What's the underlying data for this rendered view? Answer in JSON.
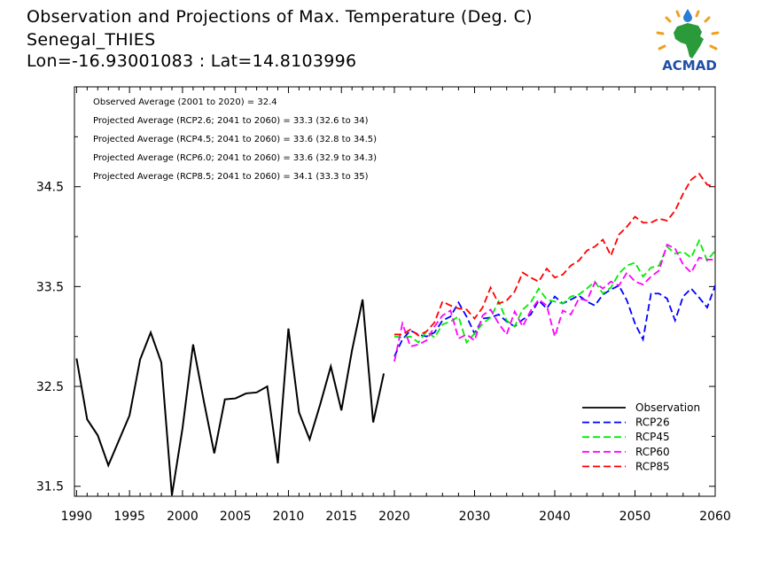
{
  "header": {
    "title": "Observation and Projections of Max. Temperature (Deg. C)",
    "station": "Senegal_THIES",
    "coords": "Lon=-16.93001083 : Lat=14.8103996"
  },
  "logo": {
    "text": "ACMAD"
  },
  "chart_data": {
    "type": "line",
    "title": "Observation and Projections of Max. Temperature (Deg. C)",
    "xlabel": "",
    "ylabel": "",
    "xlim": [
      1989.8,
      2060
    ],
    "ylim": [
      31.4,
      35.5
    ],
    "grid": false,
    "legend_position": "bottom-right",
    "yticks": [
      31.5,
      32.5,
      33.5,
      34.5
    ],
    "ytick_labels": [
      "31.5",
      "32.5",
      "33.5",
      "34.5"
    ],
    "xticks_left": [
      1990,
      1995,
      2000,
      2005,
      2010,
      2015,
      2020
    ],
    "xticks_right": [
      2020,
      2030,
      2040,
      2050,
      2060
    ],
    "xtick_labels": [
      "1990",
      "1995",
      "2000",
      "2005",
      "2010",
      "2015",
      "2020",
      "2030",
      "2040",
      "2050",
      "2060"
    ],
    "annotations": [
      "Observed Average (2001 to 2020) = 32.4",
      "Projected Average (RCP2.6; 2041 to 2060) = 33.3 (32.6 to 34)",
      "Projected Average (RCP4.5; 2041 to 2060) = 33.6 (32.8 to 34.5)",
      "Projected Average (RCP6.0; 2041 to 2060) = 33.6 (32.9 to 34.3)",
      "Projected Average (RCP8.5; 2041 to 2060) = 34.1 (33.3 to 35)"
    ],
    "observation": {
      "name": "Observation",
      "color": "#000000",
      "x": [
        1990,
        1991,
        1992,
        1993,
        1994,
        1995,
        1996,
        1997,
        1998,
        1999,
        2000,
        2001,
        2002,
        2003,
        2004,
        2005,
        2006,
        2007,
        2008,
        2009,
        2010,
        2011,
        2012,
        2013,
        2014,
        2015,
        2016,
        2017,
        2018,
        2019,
        2020
      ],
      "values": [
        32.78,
        32.17,
        32.01,
        31.71,
        31.96,
        32.21,
        32.77,
        33.04,
        32.74,
        31.41,
        32.08,
        32.92,
        32.36,
        31.83,
        32.37,
        32.38,
        32.43,
        32.44,
        32.5,
        31.73,
        33.08,
        32.24,
        31.97,
        32.32,
        32.7,
        32.26,
        32.86,
        33.37,
        32.14,
        32.63,
        null
      ]
    },
    "series": [
      {
        "name": "RCP26",
        "color": "#0000ff",
        "x": [
          2020,
          2021,
          2022,
          2023,
          2024,
          2025,
          2026,
          2027,
          2028,
          2029,
          2030,
          2031,
          2032,
          2033,
          2034,
          2035,
          2036,
          2037,
          2038,
          2039,
          2040,
          2041,
          2042,
          2043,
          2044,
          2045,
          2046,
          2047,
          2048,
          2049,
          2050,
          2051,
          2052,
          2053,
          2054,
          2055,
          2056,
          2057,
          2058,
          2059,
          2060
        ],
        "values": [
          32.8,
          32.97,
          33.06,
          33.02,
          33.0,
          33.04,
          33.16,
          33.2,
          33.34,
          33.2,
          33.03,
          33.18,
          33.19,
          33.22,
          33.15,
          33.1,
          33.17,
          33.22,
          33.36,
          33.28,
          33.4,
          33.33,
          33.37,
          33.41,
          33.35,
          33.31,
          33.42,
          33.47,
          33.51,
          33.36,
          33.13,
          32.97,
          33.43,
          33.43,
          33.38,
          33.16,
          33.4,
          33.48,
          33.39,
          33.29,
          33.51
        ]
      },
      {
        "name": "RCP45",
        "color": "#00ee00",
        "x": [
          2020,
          2021,
          2022,
          2023,
          2024,
          2025,
          2026,
          2027,
          2028,
          2029,
          2030,
          2031,
          2032,
          2033,
          2034,
          2035,
          2036,
          2037,
          2038,
          2039,
          2040,
          2041,
          2042,
          2043,
          2044,
          2045,
          2046,
          2047,
          2048,
          2049,
          2050,
          2051,
          2052,
          2053,
          2054,
          2055,
          2056,
          2057,
          2058,
          2059,
          2060
        ],
        "values": [
          33.0,
          32.99,
          33.0,
          32.94,
          33.05,
          32.99,
          33.12,
          33.15,
          33.2,
          32.94,
          33.03,
          33.13,
          33.19,
          33.35,
          33.16,
          33.1,
          33.27,
          33.34,
          33.48,
          33.37,
          33.35,
          33.33,
          33.4,
          33.42,
          33.48,
          33.55,
          33.43,
          33.49,
          33.63,
          33.71,
          33.74,
          33.6,
          33.69,
          33.71,
          33.9,
          33.83,
          33.85,
          33.79,
          33.96,
          33.76,
          33.86
        ]
      },
      {
        "name": "RCP60",
        "color": "#ff00ff",
        "x": [
          2020,
          2021,
          2022,
          2023,
          2024,
          2025,
          2026,
          2027,
          2028,
          2029,
          2030,
          2031,
          2032,
          2033,
          2034,
          2035,
          2036,
          2037,
          2038,
          2039,
          2040,
          2041,
          2042,
          2043,
          2044,
          2045,
          2046,
          2047,
          2048,
          2049,
          2050,
          2051,
          2052,
          2053,
          2054,
          2055,
          2056,
          2057,
          2058,
          2059,
          2060
        ],
        "values": [
          32.75,
          33.13,
          32.9,
          32.92,
          32.96,
          33.1,
          33.21,
          33.26,
          32.98,
          33.02,
          32.96,
          33.21,
          33.27,
          33.13,
          33.02,
          33.25,
          33.1,
          33.26,
          33.37,
          33.31,
          33.0,
          33.26,
          33.22,
          33.38,
          33.36,
          33.54,
          33.48,
          33.55,
          33.51,
          33.64,
          33.55,
          33.52,
          33.6,
          33.66,
          33.92,
          33.88,
          33.72,
          33.64,
          33.79,
          33.77,
          33.77
        ]
      },
      {
        "name": "RCP85",
        "color": "#ff0000",
        "x": [
          2020,
          2021,
          2022,
          2023,
          2024,
          2025,
          2026,
          2027,
          2028,
          2029,
          2030,
          2031,
          2032,
          2033,
          2034,
          2035,
          2036,
          2037,
          2038,
          2039,
          2040,
          2041,
          2042,
          2043,
          2044,
          2045,
          2046,
          2047,
          2048,
          2049,
          2050,
          2051,
          2052,
          2053,
          2054,
          2055,
          2056,
          2057,
          2058,
          2059,
          2060
        ],
        "values": [
          33.02,
          33.02,
          33.07,
          33.01,
          33.05,
          33.14,
          33.35,
          33.31,
          33.28,
          33.27,
          33.18,
          33.29,
          33.49,
          33.33,
          33.36,
          33.45,
          33.64,
          33.59,
          33.55,
          33.68,
          33.59,
          33.62,
          33.71,
          33.76,
          33.86,
          33.9,
          33.97,
          33.81,
          34.02,
          34.1,
          34.2,
          34.14,
          34.14,
          34.18,
          34.16,
          34.26,
          34.43,
          34.57,
          34.63,
          34.52,
          34.5
        ]
      }
    ]
  }
}
